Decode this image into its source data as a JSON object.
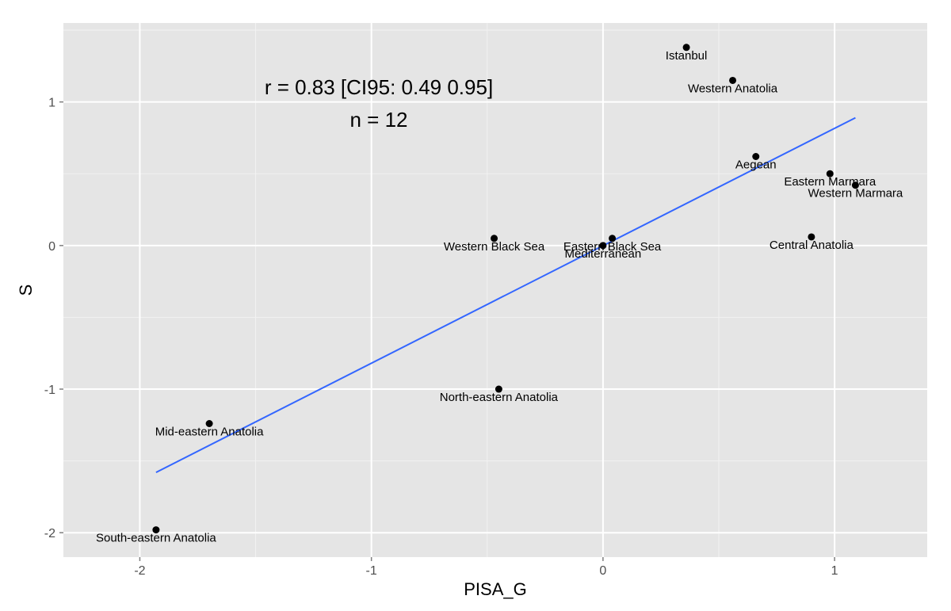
{
  "chart_data": {
    "type": "scatter",
    "xlabel": "PISA_G",
    "ylabel": "S",
    "xlim": [
      -2.33,
      1.4
    ],
    "ylim": [
      -2.17,
      1.55
    ],
    "x_ticks": [
      -2,
      -1,
      0,
      1
    ],
    "x_tick_labels": [
      "-2",
      "-1",
      "0",
      "1"
    ],
    "y_ticks": [
      -2,
      -1,
      0,
      1
    ],
    "y_tick_labels": [
      "-2",
      "-1",
      "0",
      "1"
    ],
    "grid": true,
    "points": [
      {
        "label": "Istanbul",
        "x": 0.36,
        "y": 1.38
      },
      {
        "label": "Western Anatolia",
        "x": 0.56,
        "y": 1.15
      },
      {
        "label": "Aegean",
        "x": 0.66,
        "y": 0.62
      },
      {
        "label": "Eastern Marmara",
        "x": 0.98,
        "y": 0.5
      },
      {
        "label": "Western Marmara",
        "x": 1.09,
        "y": 0.42
      },
      {
        "label": "Central Anatolia",
        "x": 0.9,
        "y": 0.06
      },
      {
        "label": "Western Black Sea",
        "x": -0.47,
        "y": 0.05
      },
      {
        "label": "Eastern Black Sea",
        "x": 0.04,
        "y": 0.05
      },
      {
        "label": "Mediterranean",
        "x": 0.0,
        "y": 0.0
      },
      {
        "label": "North-eastern Anatolia",
        "x": -0.45,
        "y": -1.0
      },
      {
        "label": "Mid-eastern Anatolia",
        "x": -1.7,
        "y": -1.24
      },
      {
        "label": "South-eastern Anatolia",
        "x": -1.93,
        "y": -1.98
      }
    ],
    "fit_line": {
      "x": [
        -1.93,
        1.09
      ],
      "y": [
        -1.58,
        0.89
      ],
      "color": "#3366ff"
    },
    "annotations": [
      "r = 0.83 [CI95: 0.49 0.95]",
      "n = 12"
    ]
  }
}
